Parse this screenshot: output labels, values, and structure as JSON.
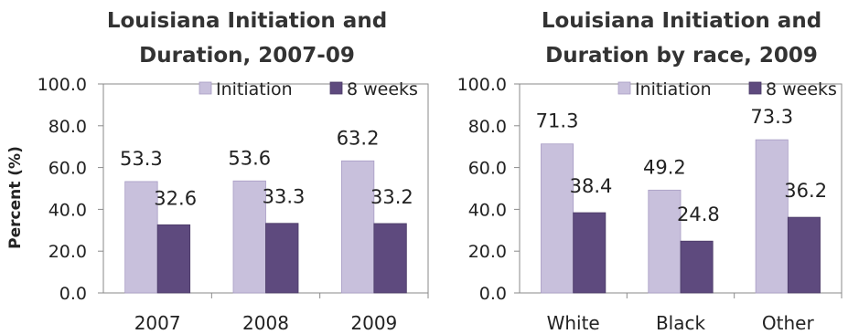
{
  "colors": {
    "initiation": "#c8c0dc",
    "eight_weeks": "#5e4a7e",
    "grid": "#8a8a8a"
  },
  "chart_data": [
    {
      "type": "bar",
      "title_lines": [
        "Louisiana Initiation and",
        "Duration, 2007-09"
      ],
      "ylabel": "Percent (%)",
      "ylim": [
        0,
        100
      ],
      "yticks": [
        "0.0",
        "20.0",
        "40.0",
        "60.0",
        "80.0",
        "100.0"
      ],
      "categories": [
        "2007",
        "2008",
        "2009"
      ],
      "series": [
        {
          "name": "Initiation",
          "values": [
            53.3,
            53.6,
            63.2
          ]
        },
        {
          "name": "8 weeks",
          "values": [
            32.6,
            33.3,
            33.2
          ]
        }
      ],
      "legend": "top-right"
    },
    {
      "type": "bar",
      "title_lines": [
        "Louisiana Initiation and",
        "Duration by race, 2009"
      ],
      "ylabel": "",
      "ylim": [
        0,
        100
      ],
      "yticks": [
        "0.0",
        "20.0",
        "40.0",
        "60.0",
        "80.0",
        "100.0"
      ],
      "categories": [
        "White",
        "Black",
        "Other"
      ],
      "series": [
        {
          "name": "Initiation",
          "values": [
            71.3,
            49.2,
            73.3
          ]
        },
        {
          "name": "8 weeks",
          "values": [
            38.4,
            24.8,
            36.2
          ]
        }
      ],
      "legend": "top-right"
    }
  ]
}
